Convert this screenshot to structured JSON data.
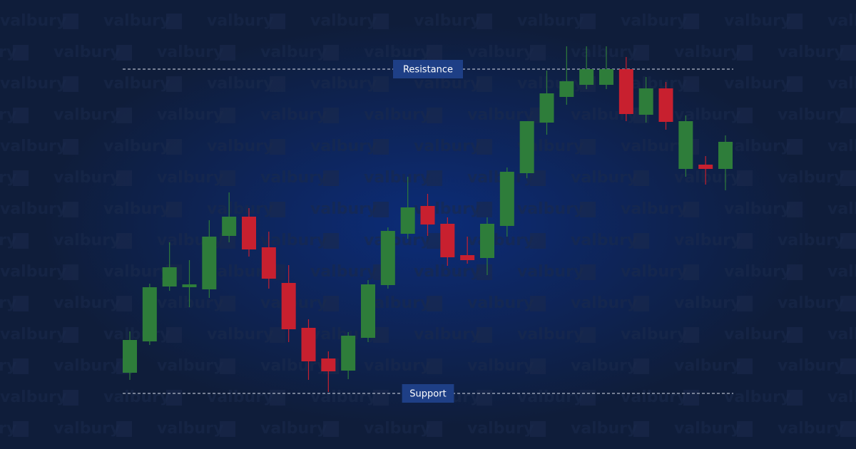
{
  "chart_data": {
    "type": "candlestick",
    "watermark": "valbury",
    "open": [
      107,
      151,
      228,
      227,
      224,
      299,
      326,
      283,
      233,
      170,
      127,
      110,
      156,
      230,
      302,
      341,
      316,
      272,
      268,
      313,
      387,
      458,
      494,
      511,
      511,
      533,
      469,
      506,
      393,
      399,
      393
    ],
    "high": [
      165,
      232,
      290,
      265,
      321,
      360,
      338,
      305,
      258,
      182,
      137,
      164,
      237,
      311,
      382,
      358,
      325,
      298,
      325,
      395,
      460,
      531,
      565,
      565,
      565,
      550,
      522,
      515,
      468,
      411,
      440
    ],
    "low": [
      97,
      146,
      222,
      199,
      212,
      290,
      270,
      225,
      150,
      97,
      80,
      98,
      150,
      225,
      295,
      299,
      257,
      260,
      244,
      298,
      380,
      441,
      483,
      505,
      505,
      460,
      458,
      448,
      382,
      371,
      363
    ],
    "close": [
      153,
      227,
      255,
      231,
      298,
      326,
      280,
      239,
      168,
      123,
      109,
      159,
      231,
      306,
      339,
      315,
      269,
      265,
      316,
      389,
      460,
      499,
      516,
      533,
      533,
      470,
      506,
      459,
      460,
      393,
      431
    ],
    "up_color": "#2e7d3a",
    "down_color": "#c8202f",
    "ylim": [
      0,
      630
    ],
    "annotations": [
      {
        "label": "Resistance",
        "value": 533
      },
      {
        "label": "Support",
        "value": 78
      }
    ]
  }
}
